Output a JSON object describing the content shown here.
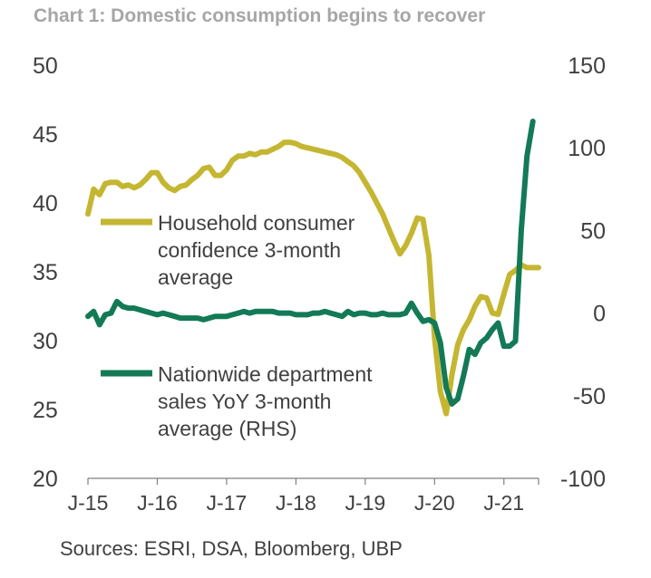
{
  "chart_data": {
    "type": "line",
    "title": "Chart 1: Domestic consumption begins to recover",
    "source": "Sources: ESRI, DSA, Bloomberg, UBP",
    "x_tick_labels": [
      "J-15",
      "J-16",
      "J-17",
      "J-18",
      "J-19",
      "J-20",
      "J-21"
    ],
    "x_tick_values": [
      2015,
      2016,
      2017,
      2018,
      2019,
      2020,
      2021
    ],
    "xlim": [
      2015,
      2021.5
    ],
    "y_left": {
      "ylim": [
        20,
        50
      ],
      "ticks": [
        "50",
        "45",
        "40",
        "35",
        "30",
        "25",
        "20"
      ]
    },
    "y_right": {
      "ylim": [
        -100,
        150
      ],
      "ticks": [
        "150",
        "100",
        "50",
        "0",
        "-50",
        "-100"
      ]
    },
    "grid": false,
    "series": [
      {
        "name": "Household consumer confidence 3-month average",
        "axis": "left",
        "color": "#c5b632",
        "x": [
          2015.0,
          2015.083,
          2015.167,
          2015.25,
          2015.333,
          2015.417,
          2015.5,
          2015.583,
          2015.667,
          2015.75,
          2015.833,
          2015.917,
          2016.0,
          2016.083,
          2016.167,
          2016.25,
          2016.333,
          2016.417,
          2016.5,
          2016.583,
          2016.667,
          2016.75,
          2016.833,
          2016.917,
          2017.0,
          2017.083,
          2017.167,
          2017.25,
          2017.333,
          2017.417,
          2017.5,
          2017.583,
          2017.667,
          2017.75,
          2017.833,
          2017.917,
          2018.0,
          2018.083,
          2018.167,
          2018.25,
          2018.333,
          2018.417,
          2018.5,
          2018.583,
          2018.667,
          2018.75,
          2018.833,
          2018.917,
          2019.0,
          2019.083,
          2019.167,
          2019.25,
          2019.333,
          2019.417,
          2019.5,
          2019.583,
          2019.667,
          2019.75,
          2019.833,
          2019.917,
          2020.0,
          2020.083,
          2020.167,
          2020.25,
          2020.333,
          2020.417,
          2020.5,
          2020.583,
          2020.667,
          2020.75,
          2020.833,
          2020.917,
          2021.0,
          2021.083,
          2021.167,
          2021.25,
          2021.333,
          2021.417,
          2021.5
        ],
        "values": [
          39.2,
          41.0,
          40.6,
          41.4,
          41.5,
          41.5,
          41.2,
          41.3,
          41.1,
          41.3,
          41.7,
          42.2,
          42.2,
          41.5,
          41.1,
          40.9,
          41.2,
          41.3,
          41.7,
          42.0,
          42.5,
          42.6,
          42.0,
          42.0,
          42.4,
          43.1,
          43.4,
          43.4,
          43.6,
          43.5,
          43.7,
          43.7,
          43.9,
          44.1,
          44.4,
          44.4,
          44.3,
          44.1,
          44.0,
          43.9,
          43.8,
          43.7,
          43.6,
          43.5,
          43.3,
          43.0,
          42.7,
          42.2,
          41.5,
          40.8,
          40.0,
          39.2,
          38.2,
          37.2,
          36.3,
          36.9,
          37.8,
          38.9,
          38.8,
          36.2,
          30.2,
          26.3,
          24.7,
          27.5,
          29.7,
          30.8,
          31.5,
          32.5,
          33.2,
          33.1,
          32.0,
          31.9,
          33.4,
          34.8,
          35.1,
          35.5,
          35.3,
          35.3,
          35.3
        ]
      },
      {
        "name": "Nationwide department sales YoY 3-month average (RHS)",
        "axis": "right",
        "color": "#137a55",
        "x": [
          2015.0,
          2015.083,
          2015.167,
          2015.25,
          2015.333,
          2015.417,
          2015.5,
          2015.583,
          2015.667,
          2015.75,
          2015.833,
          2015.917,
          2016.0,
          2016.083,
          2016.167,
          2016.25,
          2016.333,
          2016.417,
          2016.5,
          2016.583,
          2016.667,
          2016.75,
          2016.833,
          2016.917,
          2017.0,
          2017.083,
          2017.167,
          2017.25,
          2017.333,
          2017.417,
          2017.5,
          2017.583,
          2017.667,
          2017.75,
          2017.833,
          2017.917,
          2018.0,
          2018.083,
          2018.167,
          2018.25,
          2018.333,
          2018.417,
          2018.5,
          2018.583,
          2018.667,
          2018.75,
          2018.833,
          2018.917,
          2019.0,
          2019.083,
          2019.167,
          2019.25,
          2019.333,
          2019.417,
          2019.5,
          2019.583,
          2019.667,
          2019.75,
          2019.833,
          2019.917,
          2020.0,
          2020.083,
          2020.167,
          2020.25,
          2020.333,
          2020.417,
          2020.5,
          2020.583,
          2020.667,
          2020.75,
          2020.833,
          2020.917,
          2021.0,
          2021.083,
          2021.167,
          2021.25,
          2021.333,
          2021.417
        ],
        "values": [
          -2,
          1,
          -7,
          -1,
          0,
          7,
          4,
          3,
          3,
          2,
          1,
          0,
          -1,
          0,
          -1,
          -2,
          -3,
          -3,
          -3,
          -3,
          -4,
          -3,
          -2,
          -2,
          -2,
          -1,
          0,
          1,
          0,
          1,
          1,
          1,
          1,
          0,
          0,
          0,
          -1,
          -1,
          -1,
          0,
          0,
          1,
          0,
          -1,
          -2,
          1,
          -1,
          0,
          0,
          -1,
          -1,
          0,
          -1,
          -1,
          -1,
          0,
          6,
          0,
          -5,
          -4,
          -6,
          -18,
          -45,
          -55,
          -52,
          -38,
          -22,
          -25,
          -18,
          -15,
          -10,
          -6,
          -20,
          -20,
          -17,
          50,
          95,
          116
        ]
      }
    ]
  }
}
